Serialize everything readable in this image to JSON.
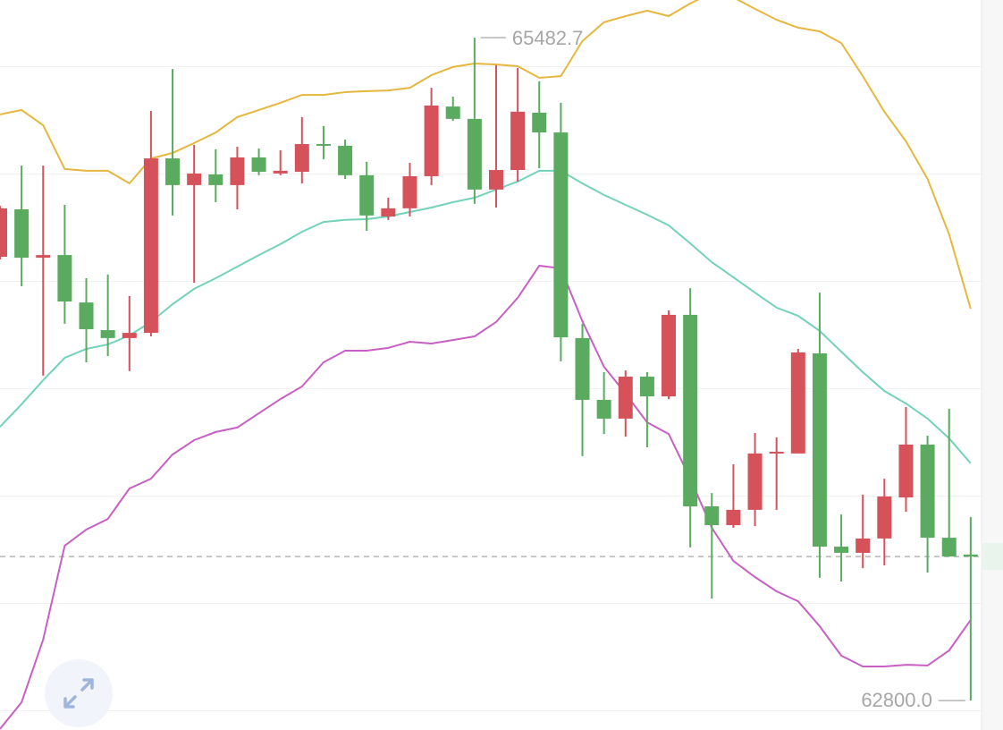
{
  "chart_data": {
    "type": "candlestick",
    "high_label": "65482.7",
    "low_label": "62800.0",
    "up_color": "#d6525a",
    "down_color": "#5aab5f",
    "current_price": 63383,
    "ylim": [
      62681,
      65635
    ],
    "open": [
      64596,
      64788,
      64592,
      64603,
      64411,
      64299,
      64267,
      64288,
      64994,
      64886,
      64929,
      64886,
      64998,
      64933,
      64940,
      65052,
      65045,
      64926,
      64759,
      64792,
      64922,
      65204,
      65154,
      64868,
      64947,
      65179,
      65099,
      64267,
      64017,
      63941,
      64111,
      64031,
      64361,
      63586,
      63510,
      63572,
      63800,
      63800,
      64205,
      63423,
      63398,
      63456,
      63622,
      63836,
      63459,
      63391
    ],
    "high": [
      64802,
      64965,
      64965,
      64806,
      64509,
      64524,
      64437,
      65186,
      65356,
      65049,
      65031,
      65041,
      65034,
      65027,
      65161,
      65125,
      65070,
      64980,
      64835,
      64976,
      65280,
      65244,
      65482.7,
      65371,
      65360,
      65306,
      65219,
      64325,
      64129,
      64136,
      64129,
      64379,
      64469,
      63640,
      63756,
      63883,
      63865,
      64223,
      64451,
      63553,
      63633,
      63698,
      63988,
      63872,
      63981,
      63543
    ],
    "low": [
      64585,
      64477,
      64115,
      64325,
      64169,
      64194,
      64133,
      64274,
      64763,
      64491,
      64817,
      64788,
      64926,
      64926,
      64893,
      64991,
      64911,
      64701,
      64745,
      64759,
      64886,
      65146,
      64810,
      64795,
      64900,
      64954,
      64173,
      63789,
      63879,
      63868,
      63825,
      64020,
      63420,
      63213,
      63499,
      63506,
      63572,
      63800,
      63297,
      63282,
      63336,
      63347,
      63564,
      63318,
      63383,
      62800.0
    ],
    "close": [
      64792,
      64592,
      64603,
      64415,
      64303,
      64267,
      64288,
      64994,
      64886,
      64933,
      64886,
      64998,
      64940,
      64944,
      65052,
      65045,
      64926,
      64763,
      64792,
      64922,
      65208,
      65154,
      64868,
      64947,
      65183,
      65099,
      64270,
      64017,
      63941,
      64111,
      64031,
      64361,
      63586,
      63510,
      63572,
      63800,
      63807,
      64209,
      63423,
      63398,
      63456,
      63626,
      63836,
      63459,
      63383,
      63383
    ],
    "bands": {
      "upper": {
        "color": "#e6b73e",
        "values": [
          65172,
          65190,
          65128,
          64951,
          64944,
          64944,
          64893,
          64994,
          65016,
          65056,
          65099,
          65161,
          65190,
          65219,
          65251,
          65251,
          65262,
          65266,
          65269,
          65280,
          65331,
          65364,
          65378,
          65374,
          65367,
          65320,
          65327,
          65469,
          65545,
          65570,
          65592,
          65570,
          65621,
          65664,
          65646,
          65599,
          65555,
          65523,
          65508,
          65461,
          65327,
          65183,
          65063,
          64911,
          64687,
          64386
        ]
      },
      "middle": {
        "color": "#72d2ba",
        "values": [
          63908,
          63999,
          64097,
          64187,
          64223,
          64241,
          64278,
          64332,
          64404,
          64466,
          64509,
          64556,
          64603,
          64647,
          64697,
          64737,
          64745,
          64748,
          64759,
          64777,
          64795,
          64817,
          64835,
          64868,
          64900,
          64944,
          64944,
          64893,
          64846,
          64806,
          64766,
          64723,
          64650,
          64574,
          64513,
          64451,
          64390,
          64357,
          64296,
          64212,
          64129,
          64053,
          64002,
          63941,
          63861,
          63760
        ]
      },
      "lower": {
        "color": "#c760c2",
        "values": [
          62685,
          62793,
          63047,
          63427,
          63492,
          63535,
          63658,
          63698,
          63796,
          63854,
          63887,
          63905,
          63963,
          64020,
          64071,
          64169,
          64216,
          64216,
          64227,
          64252,
          64245,
          64259,
          64274,
          64332,
          64430,
          64560,
          64549,
          64335,
          64151,
          64042,
          63926,
          63879,
          63698,
          63499,
          63365,
          63300,
          63242,
          63202,
          63101,
          62982,
          62938,
          62938,
          62945,
          62942,
          63003,
          63126
        ]
      }
    }
  }
}
